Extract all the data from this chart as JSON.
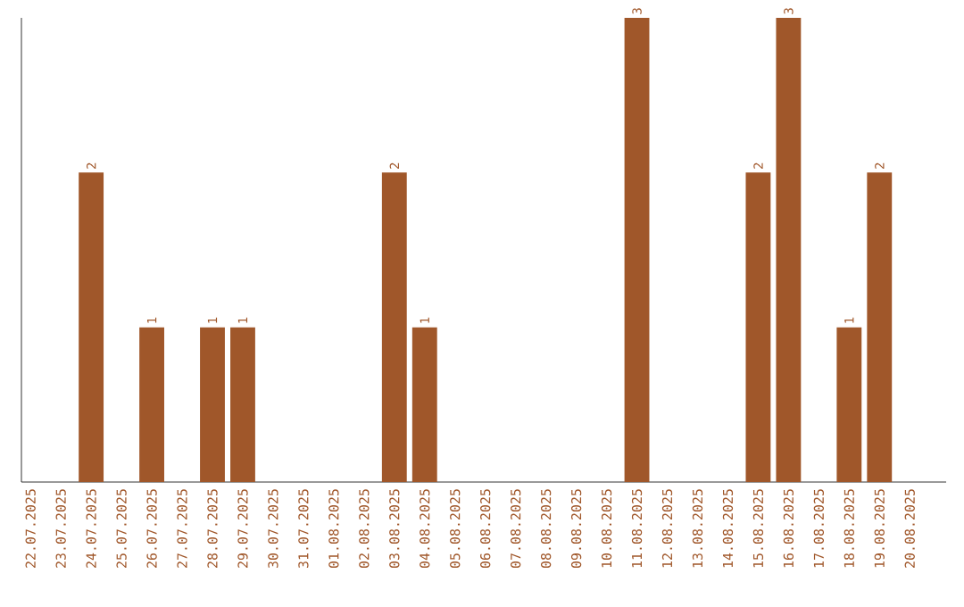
{
  "chart_data": {
    "type": "bar",
    "categories": [
      "22.07.2025",
      "23.07.2025",
      "24.07.2025",
      "25.07.2025",
      "26.07.2025",
      "27.07.2025",
      "28.07.2025",
      "29.07.2025",
      "30.07.2025",
      "31.07.2025",
      "01.08.2025",
      "02.08.2025",
      "03.08.2025",
      "04.08.2025",
      "05.08.2025",
      "06.08.2025",
      "07.08.2025",
      "08.08.2025",
      "09.08.2025",
      "10.08.2025",
      "11.08.2025",
      "12.08.2025",
      "13.08.2025",
      "14.08.2025",
      "15.08.2025",
      "16.08.2025",
      "17.08.2025",
      "18.08.2025",
      "19.08.2025",
      "20.08.2025"
    ],
    "values": [
      0,
      0,
      2,
      0,
      1,
      0,
      1,
      1,
      0,
      0,
      0,
      0,
      2,
      1,
      0,
      0,
      0,
      0,
      0,
      0,
      3,
      0,
      0,
      0,
      2,
      3,
      0,
      1,
      2,
      0
    ],
    "value_labels": [
      null,
      null,
      "2",
      null,
      "1",
      null,
      "1",
      "1",
      null,
      null,
      null,
      null,
      "2",
      "1",
      null,
      null,
      null,
      null,
      null,
      null,
      "3",
      null,
      null,
      null,
      "2",
      "3",
      null,
      "1",
      "2",
      null
    ],
    "color": "#a0572a",
    "tick_labels": "x",
    "grid": false
  }
}
